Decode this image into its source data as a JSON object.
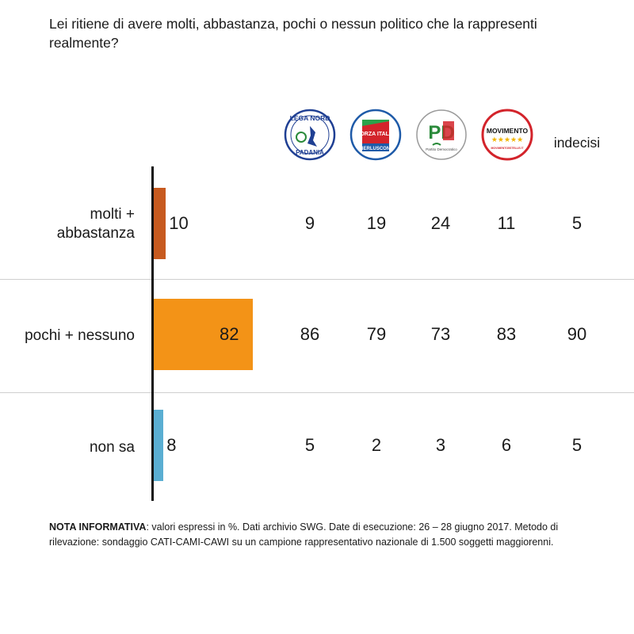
{
  "question": "Lei ritiene di avere molti, abbastanza, pochi o nessun politico che la rappresenti realmente?",
  "logos": [
    {
      "name": "lega-nord-logo",
      "text_top": "LEGA NORD",
      "text_bottom": "PADANIA",
      "color": "#1f3f93"
    },
    {
      "name": "forza-italia-logo",
      "text_top": "FORZA ITALIA",
      "text_bottom": "BERLUSCONI",
      "color": "#1e5aa8"
    },
    {
      "name": "pd-logo",
      "text_top": "PD",
      "text_bottom": "Partito Democratico",
      "color": "#d3242b"
    },
    {
      "name": "movimento-5-stelle-logo",
      "text_top": "MOVIMENTO",
      "text_bottom": "MOVIMENTO5STELLE.IT",
      "color": "#d3242b"
    }
  ],
  "indecisi_label": "indecisi",
  "chart_data": {
    "type": "bar",
    "orientation": "horizontal",
    "categories": [
      "molti + abbastanza",
      "pochi + nessuno",
      "non sa"
    ],
    "values": [
      10,
      82,
      8
    ],
    "colors": [
      "#c75a1f",
      "#f39317",
      "#5aaed2"
    ],
    "xlim": [
      0,
      100
    ],
    "table": {
      "columns": [
        "LEGA NORD",
        "FORZA ITALIA",
        "PD",
        "MOVIMENTO 5 STELLE",
        "indecisi"
      ],
      "rows": [
        [
          9,
          19,
          24,
          11,
          5
        ],
        [
          86,
          79,
          73,
          83,
          90
        ],
        [
          5,
          2,
          3,
          6,
          5
        ]
      ]
    }
  },
  "rows_display": {
    "labels": [
      [
        "molti +",
        "abbastanza"
      ],
      [
        "pochi + nessuno"
      ],
      [
        "non sa"
      ]
    ]
  },
  "note": {
    "bold": "NOTA INFORMATIVA",
    "text": ": valori espressi in %. Dati archivio SWG. Date di esecuzione: 26 – 28 giugno 2017. Metodo di rilevazione: sondaggio CATI-CAMI-CAWI su un campione rappresentativo nazionale di 1.500 soggetti maggiorenni."
  }
}
